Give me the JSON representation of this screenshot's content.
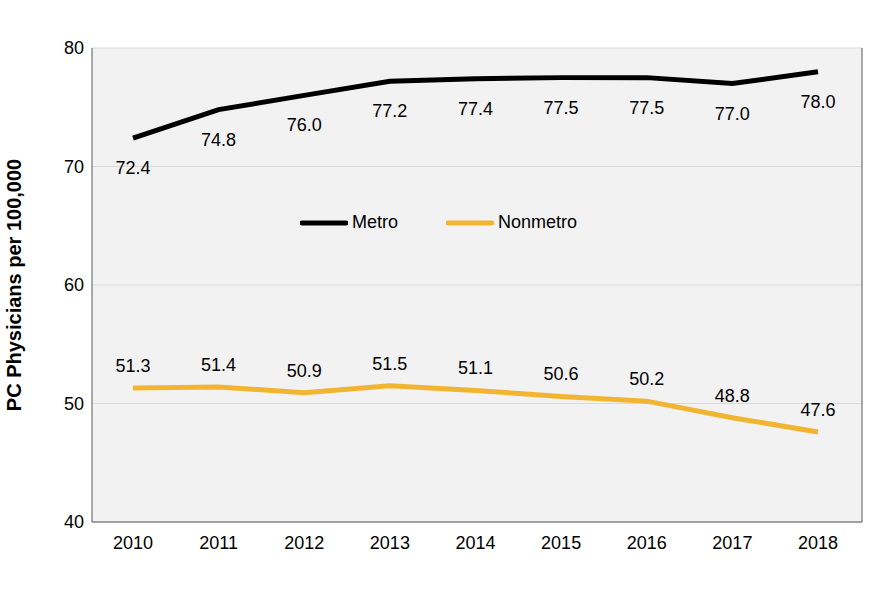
{
  "chart_data": {
    "type": "line",
    "y_label": "PC Physicians per 100,000",
    "categories": [
      "2010",
      "2011",
      "2012",
      "2013",
      "2014",
      "2015",
      "2016",
      "2017",
      "2018"
    ],
    "series": [
      {
        "name": "Metro",
        "color": "#000000",
        "values": [
          72.4,
          74.8,
          76.0,
          77.2,
          77.4,
          77.5,
          77.5,
          77.0,
          78.0
        ],
        "value_labels": [
          "72.4",
          "74.8",
          "76.0",
          "77.2",
          "77.4",
          "77.5",
          "77.5",
          "77.0",
          "78.0"
        ]
      },
      {
        "name": "Nonmetro",
        "color": "#f2b531",
        "values": [
          51.3,
          51.4,
          50.9,
          51.5,
          51.1,
          50.6,
          50.2,
          48.8,
          47.6
        ],
        "value_labels": [
          "51.3",
          "51.4",
          "50.9",
          "51.5",
          "51.1",
          "50.6",
          "50.2",
          "48.8",
          "47.6"
        ]
      }
    ],
    "ylim": [
      40,
      80
    ],
    "yticks": [
      40,
      50,
      60,
      70,
      80
    ],
    "grid": true,
    "legend": "center",
    "data_labels": true
  }
}
